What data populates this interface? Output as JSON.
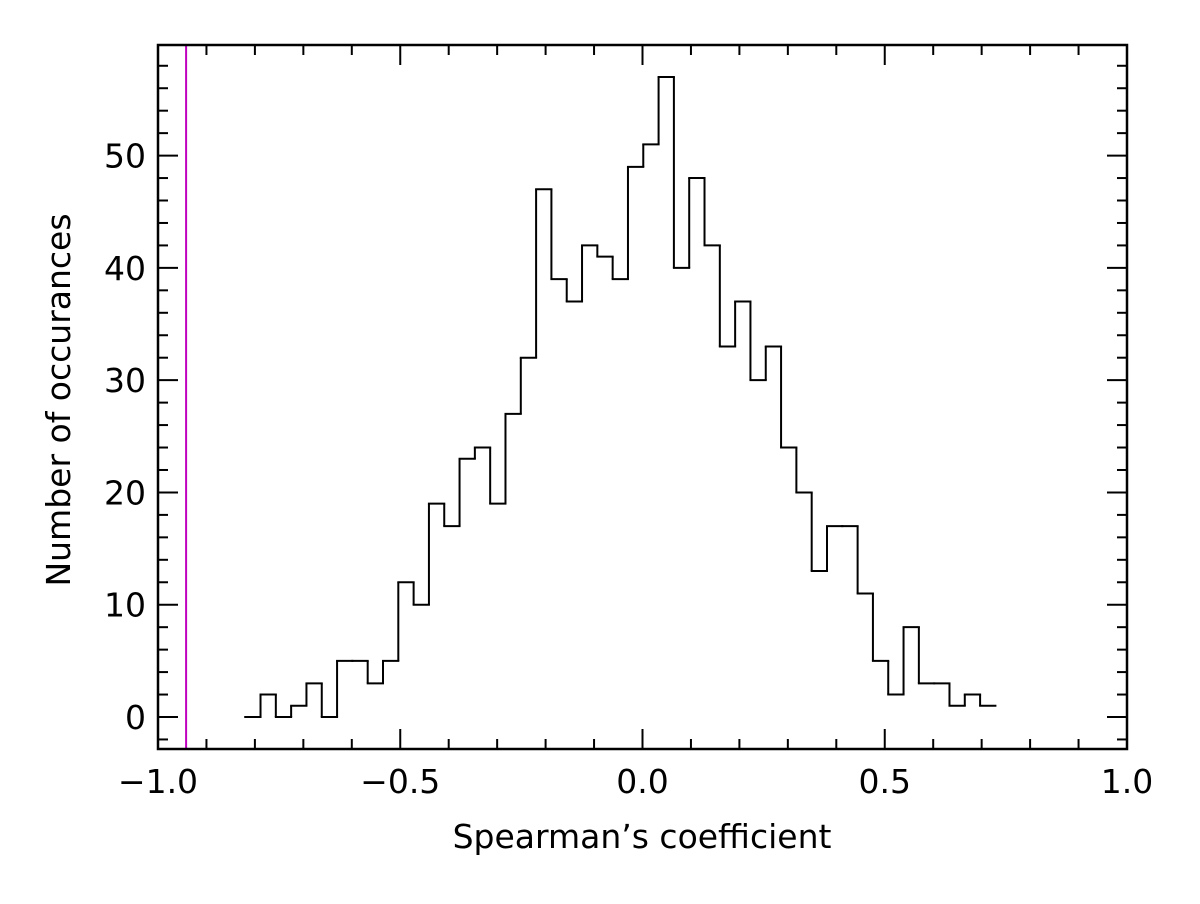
{
  "chart_data": {
    "type": "histogram",
    "xlabel": "Spearman’s coefficient",
    "ylabel": "Number of occurances",
    "bins": [
      -0.82,
      -0.7884,
      -0.7568,
      -0.7252,
      -0.6936,
      -0.662,
      -0.6304,
      -0.5988,
      -0.5672,
      -0.5356,
      -0.504,
      -0.4724,
      -0.4408,
      -0.4092,
      -0.3776,
      -0.346,
      -0.3144,
      -0.2828,
      -0.2512,
      -0.2196,
      -0.188,
      -0.1564,
      -0.1248,
      -0.0932,
      -0.0616,
      -0.03,
      0.0016,
      0.0332,
      0.0648,
      0.0964,
      0.128,
      0.1596,
      0.1912,
      0.2228,
      0.2544,
      0.286,
      0.3176,
      0.3492,
      0.3808,
      0.4124,
      0.444,
      0.4756,
      0.5072,
      0.5388,
      0.5704,
      0.602,
      0.6336,
      0.6652,
      0.6968,
      0.7284
    ],
    "values": [
      0,
      2,
      0,
      1,
      3,
      0,
      5,
      5,
      3,
      5,
      12,
      10,
      19,
      17,
      23,
      24,
      19,
      27,
      32,
      47,
      39,
      37,
      42,
      41,
      39,
      49,
      51,
      57,
      40,
      48,
      42,
      33,
      37,
      30,
      33,
      24,
      20,
      13,
      17,
      17,
      11,
      5,
      2,
      8,
      3,
      3,
      1,
      2,
      1
    ],
    "color": "#000000",
    "reference_line": {
      "x": -0.942,
      "color": "#bf00bf"
    },
    "xlim": [
      -1.0,
      1.0
    ],
    "xticks": [
      {
        "value": -1.0,
        "label": "−1.0"
      },
      {
        "value": -0.5,
        "label": "−0.5"
      },
      {
        "value": 0,
        "label": "0.0"
      },
      0.5,
      {
        "value": 1.0,
        "label": "1.0"
      }
    ],
    "xminorticks": [
      -0.9,
      -0.8,
      -0.7,
      -0.6,
      -0.4,
      -0.3,
      -0.2,
      -0.1,
      0.1,
      0.2,
      0.3,
      0.4,
      0.6,
      0.7,
      0.8,
      0.9
    ],
    "ylim": [
      -2.85,
      59.85
    ],
    "yticks": [
      0,
      10,
      20,
      30,
      40,
      50
    ],
    "yminorticks": [
      -2,
      2,
      4,
      6,
      8,
      12,
      14,
      16,
      18,
      22,
      24,
      26,
      28,
      32,
      34,
      36,
      38,
      42,
      44,
      46,
      48,
      52,
      54,
      56,
      58
    ]
  }
}
